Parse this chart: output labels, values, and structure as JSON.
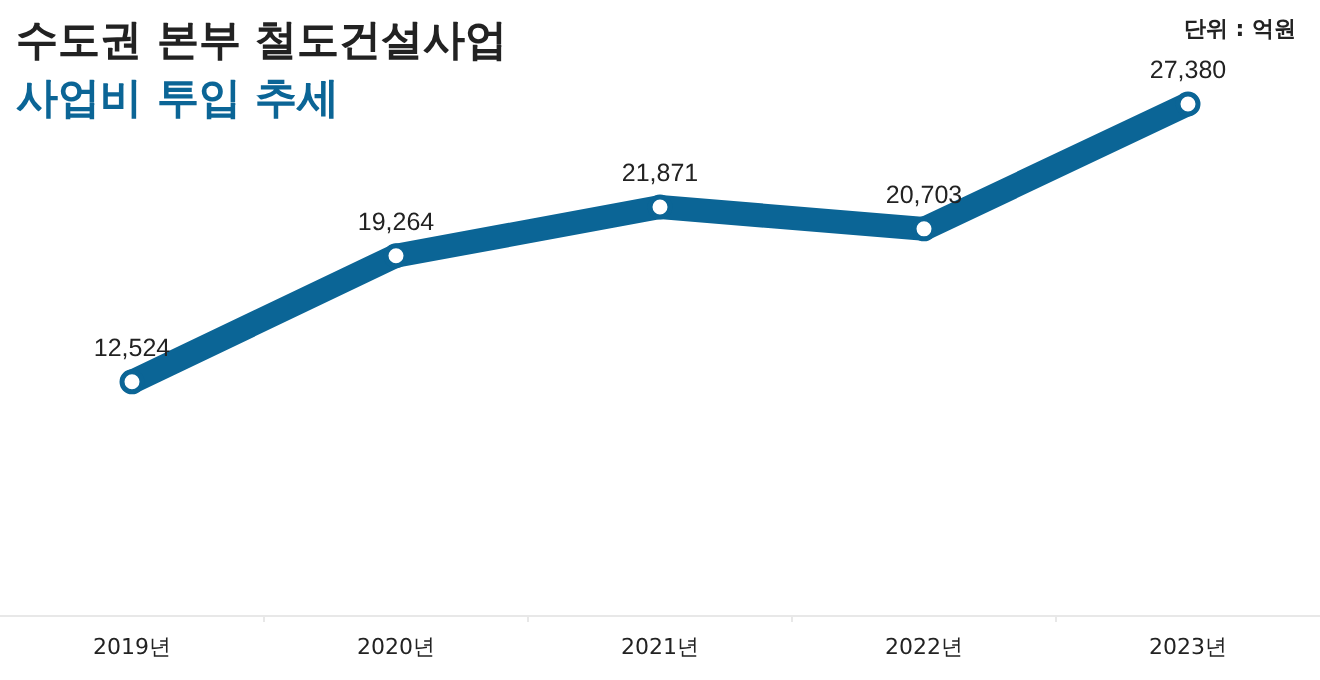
{
  "chart_data": {
    "type": "line",
    "title": "수도권 본부 철도건설사업",
    "subtitle": "사업비 투입 추세",
    "annotations": [
      "단위 : 억원"
    ],
    "categories": [
      "2019년",
      "2020년",
      "2021년",
      "2022년",
      "2023년"
    ],
    "series": [
      {
        "color": "#0b6596",
        "values": [
          12524,
          19264,
          21871,
          20703,
          27380
        ],
        "value_labels": [
          "12,524",
          "19,264",
          "21,871",
          "20,703",
          "27,380"
        ]
      }
    ],
    "marker": "circle",
    "line_style": "solid"
  }
}
